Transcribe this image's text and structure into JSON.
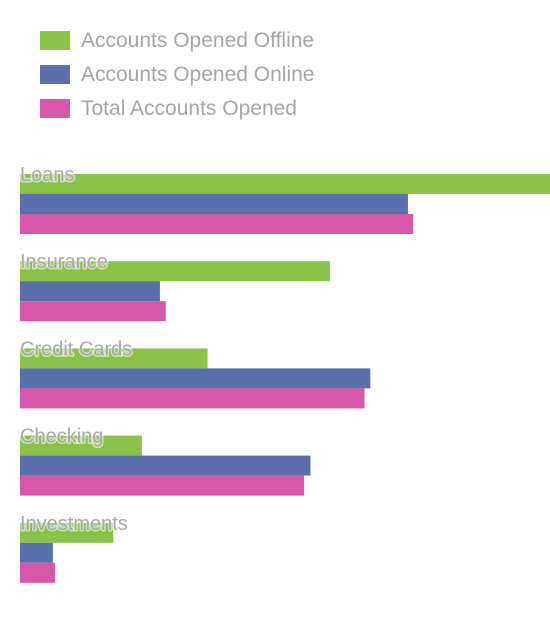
{
  "chart_data": {
    "type": "bar",
    "orientation": "horizontal",
    "title": "",
    "xlabel": "",
    "ylabel": "",
    "categories": [
      "Loans",
      "Insurance",
      "Credit Cards",
      "Checking",
      "Investments"
    ],
    "series": [
      {
        "name": "Accounts Opened Offline",
        "color": "#8bc34a",
        "values": [
          100,
          58.5,
          35.4,
          23,
          17.6
        ]
      },
      {
        "name": "Accounts Opened Online",
        "color": "#5b6fad",
        "values": [
          73.2,
          26.4,
          66.1,
          54.8,
          6.2
        ]
      },
      {
        "name": "Total Accounts Opened",
        "color": "#d957a8",
        "values": [
          74.2,
          27.5,
          65,
          53.6,
          6.6
        ]
      }
    ],
    "xlim": [
      0,
      100
    ],
    "grid": false,
    "legend": "top-left"
  }
}
